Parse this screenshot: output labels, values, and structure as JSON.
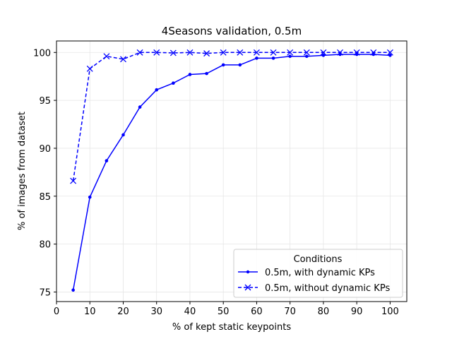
{
  "chart_data": {
    "type": "line",
    "title": "4Seasons validation, 0.5m",
    "xlabel": "% of kept static keypoints",
    "ylabel": "% of images from dataset",
    "xlim": [
      0,
      105
    ],
    "ylim": [
      74.0,
      101.2
    ],
    "xticks": [
      0,
      10,
      20,
      30,
      40,
      50,
      60,
      70,
      80,
      90,
      100
    ],
    "yticks": [
      75,
      80,
      85,
      90,
      95,
      100
    ],
    "grid": true,
    "legend": {
      "title": "Conditions",
      "position": "lower-right"
    },
    "series": [
      {
        "name": "0.5m, with dynamic KPs",
        "color": "#0000ff",
        "linestyle": "solid",
        "marker": "dot",
        "x": [
          5,
          10,
          15,
          20,
          25,
          30,
          35,
          40,
          45,
          50,
          55,
          60,
          65,
          70,
          75,
          80,
          85,
          90,
          95,
          100
        ],
        "y": [
          75.2,
          84.9,
          88.7,
          91.4,
          94.3,
          96.1,
          96.8,
          97.7,
          97.8,
          98.7,
          98.7,
          99.4,
          99.4,
          99.6,
          99.6,
          99.7,
          99.8,
          99.8,
          99.8,
          99.7
        ]
      },
      {
        "name": "0.5m, without dynamic KPs",
        "color": "#0000ff",
        "linestyle": "dashed",
        "marker": "x",
        "x": [
          5,
          10,
          15,
          20,
          25,
          30,
          35,
          40,
          45,
          50,
          55,
          60,
          65,
          70,
          75,
          80,
          85,
          90,
          95,
          100
        ],
        "y": [
          86.6,
          98.3,
          99.6,
          99.3,
          100.0,
          100.0,
          99.95,
          100.0,
          99.9,
          100.0,
          100.0,
          100.0,
          100.0,
          100.0,
          100.0,
          100.0,
          100.0,
          100.0,
          100.0,
          100.0
        ]
      }
    ]
  }
}
